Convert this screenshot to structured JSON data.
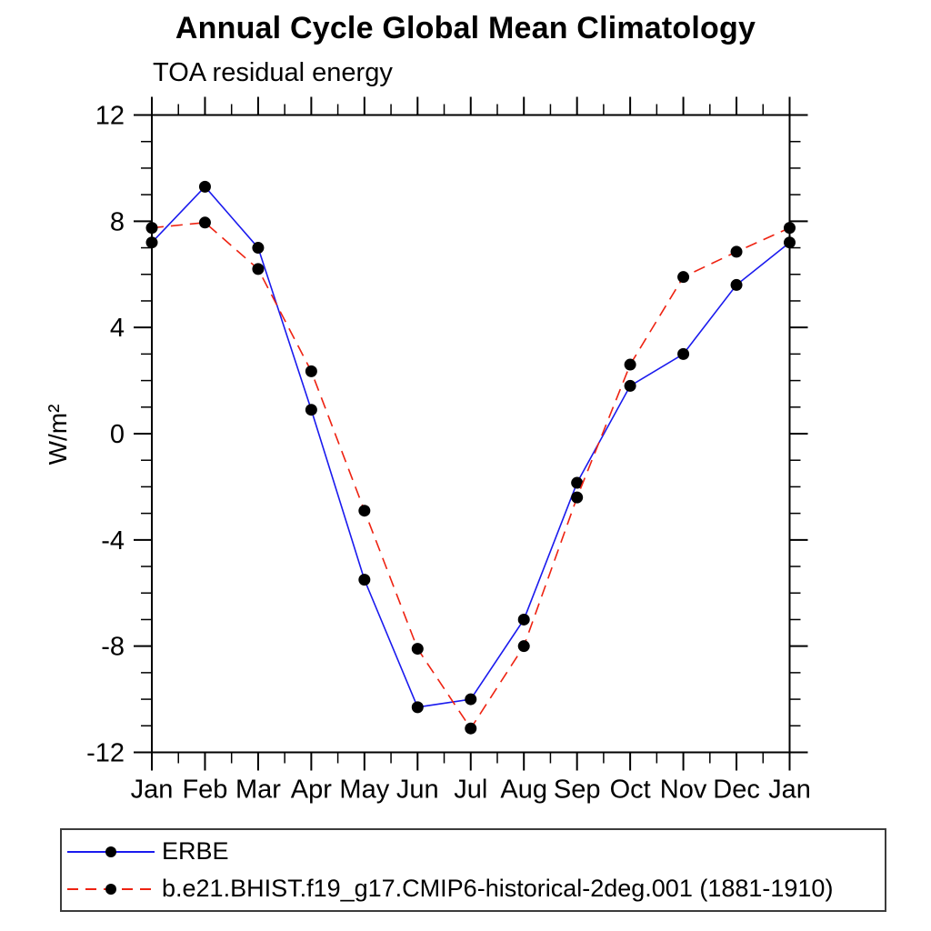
{
  "chart_data": {
    "type": "line",
    "title": "Annual Cycle Global Mean Climatology",
    "subtitle": "TOA residual energy",
    "ylabel": "W/m²",
    "xlabel": "",
    "categories": [
      "Jan",
      "Feb",
      "Mar",
      "Apr",
      "May",
      "Jun",
      "Jul",
      "Aug",
      "Sep",
      "Oct",
      "Nov",
      "Dec",
      "Jan"
    ],
    "ylim": [
      -12,
      12
    ],
    "ytick_major": 4,
    "ytick_minor": 1,
    "ytick_labels": [
      "12",
      "8",
      "4",
      "0",
      "-4",
      "-8",
      "-12"
    ],
    "grid": "off",
    "legend_position": "bottom-left-box",
    "axis_color": "#000000",
    "marker": "filled-circle",
    "marker_color": "#000000",
    "series": [
      {
        "name": "ERBE",
        "color": "#1a1aee",
        "line_style": "solid",
        "values": [
          7.2,
          9.3,
          7.0,
          0.9,
          -5.5,
          -10.3,
          -10.0,
          -7.0,
          -1.85,
          1.8,
          3.0,
          5.6,
          7.2
        ]
      },
      {
        "name": "b.e21.BHIST.f19_g17.CMIP6-historical-2deg.001 (1881-1910)",
        "color": "#ee2211",
        "line_style": "dashed",
        "values": [
          7.75,
          7.95,
          6.2,
          2.35,
          -2.9,
          -8.1,
          -11.1,
          -8.0,
          -2.4,
          2.6,
          5.9,
          6.85,
          7.75
        ]
      }
    ]
  }
}
